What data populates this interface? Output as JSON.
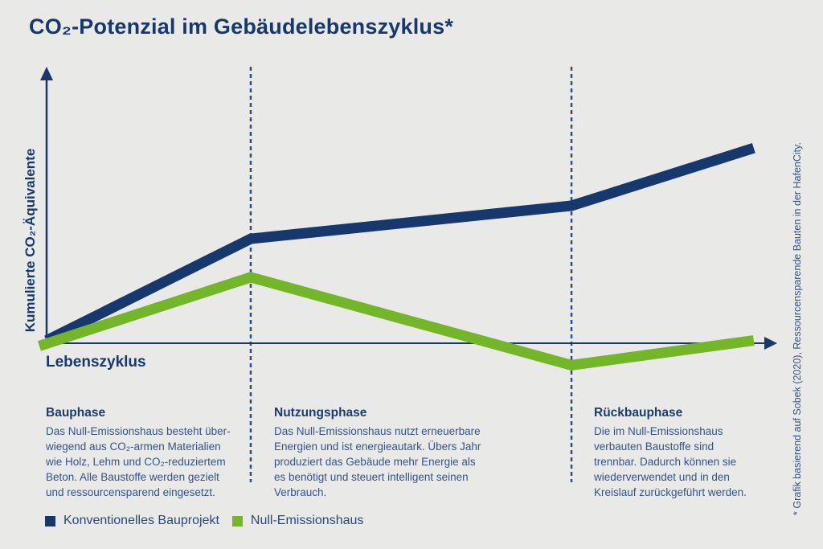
{
  "theme": {
    "background": "#e9e9e8",
    "navy": "#16386d",
    "body_text_blue": "#32548a",
    "green": "#74b62a",
    "dashed_divider": "#2c4e80"
  },
  "title": "CO₂-Potenzial im Gebäudelebenszyklus*",
  "axes": {
    "y_label": "Kumulierte CO₂-Äquivalente",
    "x_label": "Lebenszyklus"
  },
  "phases": [
    {
      "title": "Bauphase",
      "description": "Das Null-Emissionshaus besteht über-\nwiegend aus CO₂-armen Materialien\nwie Holz, Lehm und CO₂-reduziertem\nBeton. Alle Baustoffe werden gezielt\nund ressourcensparend eingesetzt."
    },
    {
      "title": "Nutzungsphase",
      "description": "Das Null-Emissionshaus nutzt erneuerbare\nEnergien und ist energieautark. Übers Jahr\nproduziert das Gebäude mehr Energie als\nes benötigt und steuert intelligent seinen\nVerbrauch."
    },
    {
      "title": "Rückbauphase",
      "description": "Die im Null-Emissionshaus\nverbauten Baustoffe sind\ntrennbar. Dadurch können sie\nwiederverwendet und in den\nKreislauf zurückgeführt werden."
    }
  ],
  "footnote": "* Grafik basierend auf Sobek (2020), Ressourcensparende Bauten in der HafenCity.",
  "legend": {
    "items": [
      {
        "label": "Konventionelles Bauprojekt",
        "color": "#16386d"
      },
      {
        "label": "Null-Emissionshaus",
        "color": "#74b62a"
      }
    ]
  },
  "chart_data": {
    "type": "line",
    "title": "CO₂-Potenzial im Gebäudelebenszyklus*",
    "xlabel": "Lebenszyklus",
    "ylabel": "Kumulierte CO₂-Äquivalente",
    "grid": false,
    "legend_position": "bottom-left",
    "x_range": [
      0,
      100
    ],
    "y_range": [
      -10,
      100
    ],
    "note": "Conceptual chart without numeric ticks; values are relative (0-100 of axis span), y=0 is the x-axis baseline.",
    "phases": [
      "Bauphase",
      "Nutzungsphase",
      "Rückbauphase"
    ],
    "phase_dividers_x": [
      28,
      72
    ],
    "series": [
      {
        "name": "Konventionelles Bauprojekt",
        "color": "#16386d",
        "points": [
          [
            0,
            1
          ],
          [
            28,
            38
          ],
          [
            72,
            50
          ],
          [
            97,
            71
          ]
        ]
      },
      {
        "name": "Null-Emissionshaus",
        "color": "#74b62a",
        "points": [
          [
            -1,
            -1
          ],
          [
            28,
            24
          ],
          [
            72,
            -8
          ],
          [
            97,
            1
          ]
        ]
      }
    ]
  }
}
